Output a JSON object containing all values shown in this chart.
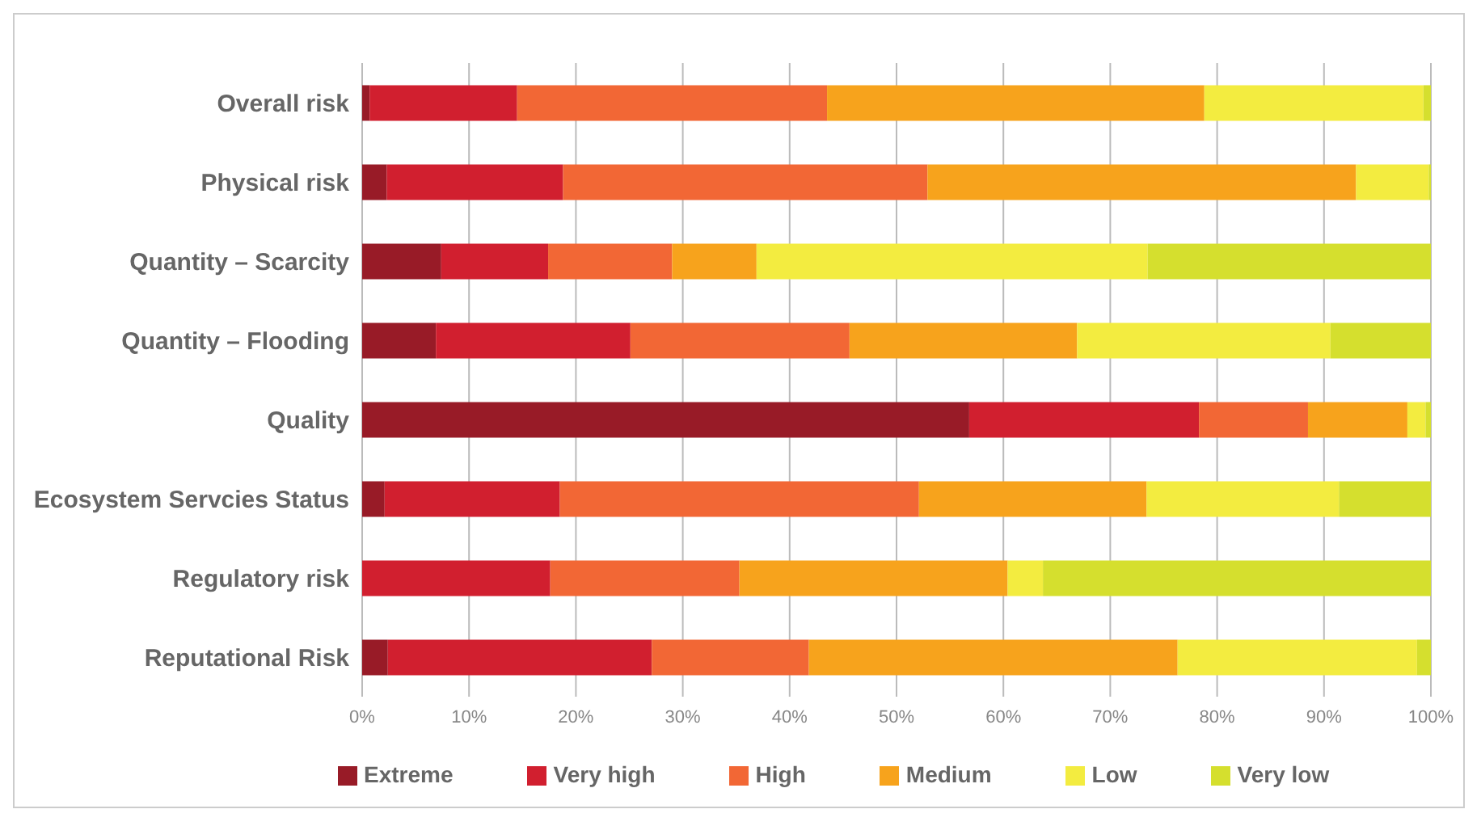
{
  "chart_data": {
    "type": "bar",
    "orientation": "horizontal",
    "stacked": true,
    "categories": [
      "Overall risk",
      "Physical risk",
      "Quantity – Scarcity",
      "Quantity – Flooding",
      "Quality",
      "Ecosystem Servcies Status",
      "Regulatory risk",
      "Reputational Risk"
    ],
    "series": [
      {
        "name": "Extreme",
        "color": "#981b27",
        "values": [
          0.7,
          2.3,
          7.4,
          6.9,
          56.8,
          2.1,
          0,
          2.4
        ]
      },
      {
        "name": "Very high",
        "color": "#d11f2f",
        "values": [
          13.8,
          16.5,
          10.0,
          18.2,
          21.5,
          16.4,
          17.6,
          24.7
        ]
      },
      {
        "name": "High",
        "color": "#f26735",
        "values": [
          29.0,
          34.1,
          11.6,
          20.5,
          10.2,
          33.6,
          17.7,
          14.7
        ]
      },
      {
        "name": "Medium",
        "color": "#f7a31c",
        "values": [
          35.3,
          40.1,
          7.9,
          21.3,
          9.3,
          21.3,
          25.1,
          34.5
        ]
      },
      {
        "name": "Low",
        "color": "#f3ec40",
        "values": [
          20.5,
          6.8,
          36.6,
          23.7,
          1.7,
          18.0,
          3.3,
          22.4
        ]
      },
      {
        "name": "Very low",
        "color": "#d5df2e",
        "values": [
          0.7,
          0.2,
          26.5,
          9.4,
          0.5,
          8.6,
          36.3,
          1.3
        ]
      }
    ],
    "xlim": [
      0,
      100
    ],
    "xticks": [
      {
        "value": 0,
        "label": "0%"
      },
      {
        "value": 10,
        "label": "10%"
      },
      {
        "value": 20,
        "label": "20%"
      },
      {
        "value": 30,
        "label": "30%"
      },
      {
        "value": 40,
        "label": "40%"
      },
      {
        "value": 50,
        "label": "50%"
      },
      {
        "value": 60,
        "label": "60%"
      },
      {
        "value": 70,
        "label": "70%"
      },
      {
        "value": 80,
        "label": "80%"
      },
      {
        "value": 90,
        "label": "90%"
      },
      {
        "value": 100,
        "label": "100%"
      }
    ],
    "grid": "x",
    "legend": "bottom left"
  }
}
